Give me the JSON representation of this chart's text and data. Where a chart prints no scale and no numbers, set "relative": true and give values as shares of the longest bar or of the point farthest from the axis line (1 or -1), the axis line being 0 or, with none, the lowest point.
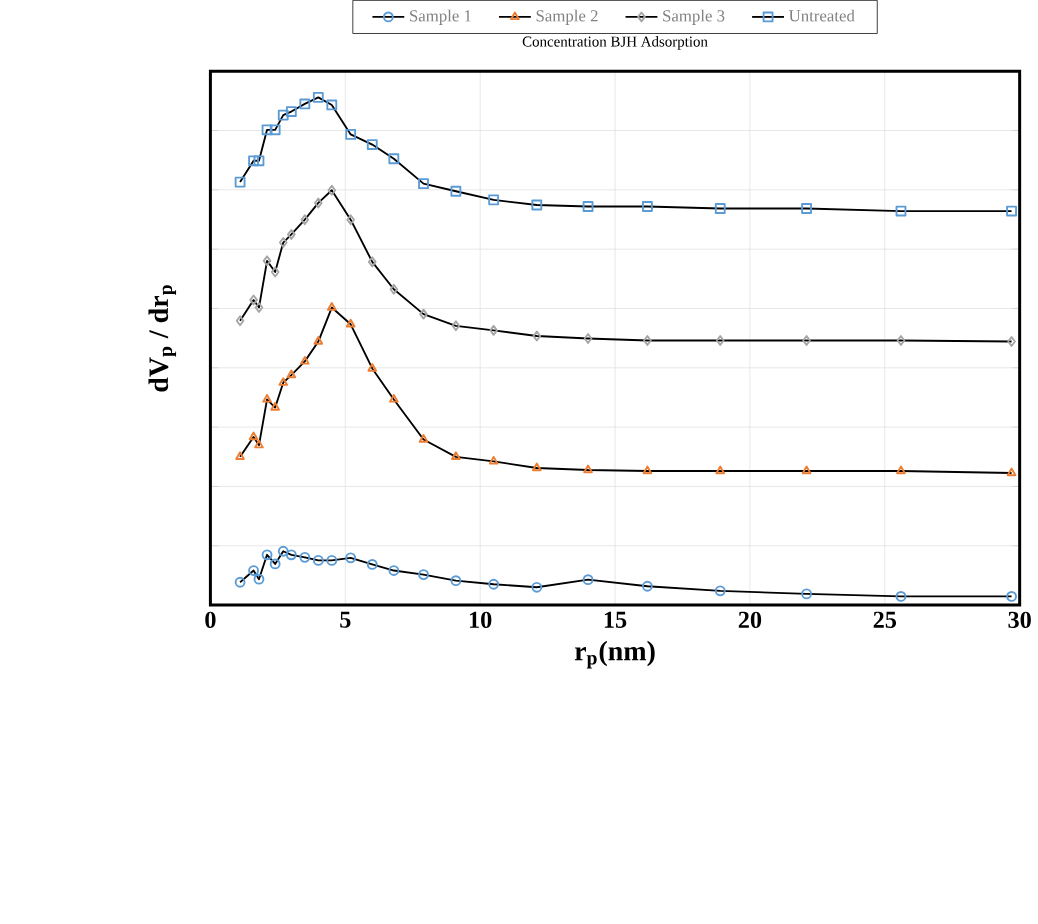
{
  "chart_data": {
    "type": "line",
    "title": "Concentration BJH Adsorption",
    "xlabel": "r$_{p}$(nm)",
    "ylabel": "dV$_{p}$ / dr$_{p}$",
    "relative": true,
    "x": [
      1.1,
      1.6,
      1.8,
      2.1,
      2.4,
      2.7,
      3.0,
      3.5,
      4.0,
      4.5,
      5.2,
      6.0,
      6.8,
      7.9,
      9.1,
      10.5,
      12.1,
      14.0,
      16.2,
      18.9,
      22.1,
      25.6,
      29.7
    ],
    "xlim": [
      0,
      30
    ],
    "xticks": [
      0,
      5,
      10,
      15,
      20,
      25,
      30
    ],
    "grid": true,
    "legend": "top",
    "series": [
      {
        "name": "Sample 1",
        "color": "#5b9bd5",
        "marker": "circle",
        "values": [
          0.045,
          0.068,
          0.051,
          0.099,
          0.081,
          0.106,
          0.099,
          0.094,
          0.088,
          0.088,
          0.093,
          0.08,
          0.068,
          0.06,
          0.048,
          0.041,
          0.035,
          0.05,
          0.037,
          0.028,
          0.022,
          0.017,
          0.017
        ]
      },
      {
        "name": "Sample 2",
        "color": "#ed7d31",
        "marker": "triangle",
        "values": [
          0.292,
          0.331,
          0.315,
          0.405,
          0.389,
          0.438,
          0.453,
          0.48,
          0.519,
          0.586,
          0.553,
          0.466,
          0.405,
          0.326,
          0.292,
          0.283,
          0.27,
          0.266,
          0.264,
          0.264,
          0.264,
          0.264,
          0.26
        ]
      },
      {
        "name": "Sample 3",
        "color": "#a5a5a5",
        "marker": "diamond",
        "values": [
          0.56,
          0.601,
          0.586,
          0.678,
          0.656,
          0.714,
          0.73,
          0.759,
          0.792,
          0.817,
          0.759,
          0.676,
          0.622,
          0.573,
          0.55,
          0.541,
          0.53,
          0.525,
          0.521,
          0.521,
          0.521,
          0.521,
          0.519
        ]
      },
      {
        "name": "Untreated",
        "color": "#5b9bd5",
        "marker": "square",
        "values": [
          0.833,
          0.875,
          0.875,
          0.936,
          0.936,
          0.965,
          0.972,
          0.987,
          1.0,
          0.985,
          0.927,
          0.907,
          0.879,
          0.83,
          0.815,
          0.798,
          0.788,
          0.785,
          0.785,
          0.781,
          0.781,
          0.776,
          0.776
        ]
      }
    ]
  }
}
